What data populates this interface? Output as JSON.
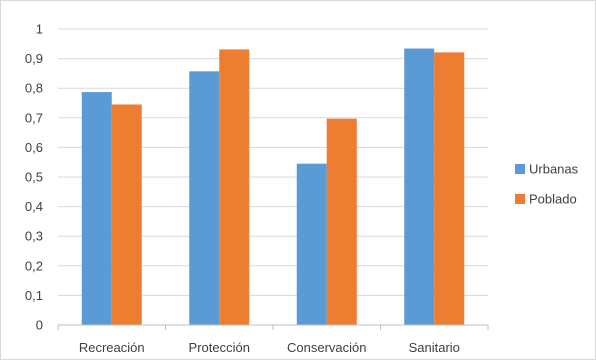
{
  "chart_data": {
    "type": "bar",
    "categories": [
      "Recreación",
      "Protección",
      "Conservación",
      "Sanitario"
    ],
    "series": [
      {
        "name": "Urbanas",
        "values": [
          0.787,
          0.857,
          0.545,
          0.934
        ]
      },
      {
        "name": "Poblado",
        "values": [
          0.745,
          0.931,
          0.697,
          0.921
        ]
      }
    ],
    "colors": [
      "#5b9bd5",
      "#ed7d31"
    ],
    "yticks": [
      "0",
      "0,1",
      "0,2",
      "0,3",
      "0,4",
      "0,5",
      "0,6",
      "0,7",
      "0,8",
      "0,9",
      "1"
    ],
    "ylim": [
      0,
      1
    ],
    "grid": true,
    "legend_position": "right"
  }
}
